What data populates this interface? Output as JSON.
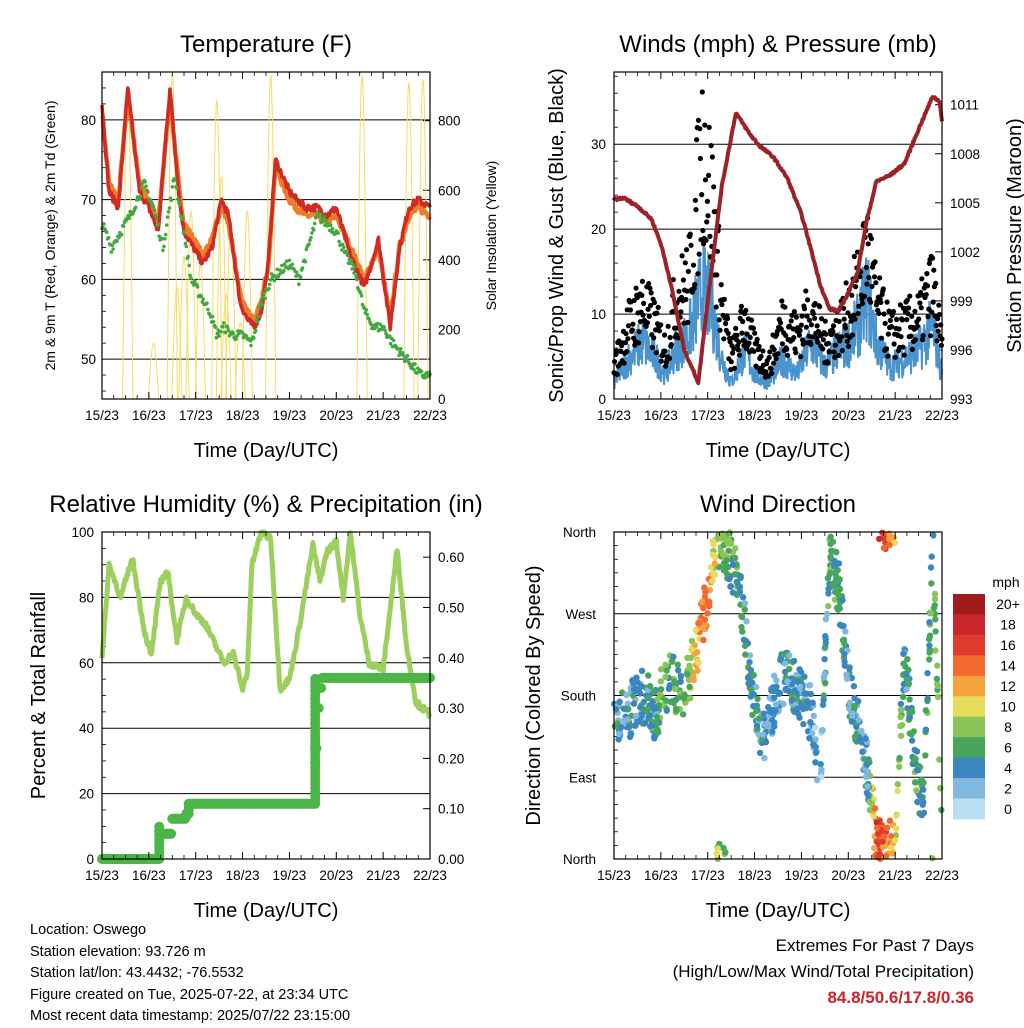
{
  "chart_data": [
    {
      "type": "line",
      "title": "Temperature (F)",
      "xlabel": "Time (Day/UTC)",
      "ylabel": "2m & 9m T (Red, Orange) & 2m Td (Green)",
      "ylabel_right": "Solar Insolation (Yellow)",
      "x_ticks": [
        "15/23",
        "16/23",
        "17/23",
        "18/23",
        "19/23",
        "20/23",
        "21/23",
        "22/23"
      ],
      "xlim": [
        0,
        7
      ],
      "y_ticks": [
        50,
        60,
        70,
        80
      ],
      "ylim": [
        45,
        86
      ],
      "y2_ticks": [
        0,
        200,
        400,
        600,
        800
      ],
      "y2lim": [
        0,
        940
      ],
      "grid": "horizontal",
      "series": [
        {
          "name": "2m T",
          "color": "#d02a25",
          "x": [
            0,
            0.15,
            0.35,
            0.55,
            0.8,
            1.0,
            1.2,
            1.45,
            1.65,
            1.75,
            1.95,
            2.15,
            2.35,
            2.55,
            2.7,
            2.95,
            3.1,
            3.25,
            3.4,
            3.55,
            3.7,
            3.85,
            4.0,
            4.15,
            4.35,
            4.6,
            4.8,
            5.0,
            5.3,
            5.6,
            5.9,
            6.15,
            6.35,
            6.55,
            6.75,
            7.0
          ],
          "values": [
            82,
            71,
            69,
            84,
            71,
            69,
            66,
            84,
            70,
            66,
            64,
            62,
            64,
            70,
            68,
            57,
            55,
            54,
            56,
            62,
            75,
            73,
            71,
            70,
            69,
            69,
            68,
            69,
            63,
            59,
            65,
            54,
            64,
            69,
            70,
            69
          ]
        },
        {
          "name": "9m T",
          "color": "#ef7d27",
          "x": [
            0,
            0.15,
            0.35,
            0.55,
            0.8,
            1.0,
            1.2,
            1.45,
            1.65,
            1.75,
            1.95,
            2.15,
            2.35,
            2.55,
            2.7,
            2.95,
            3.1,
            3.25,
            3.4,
            3.55,
            3.7,
            3.85,
            4.0,
            4.15,
            4.35,
            4.6,
            4.8,
            5.0,
            5.3,
            5.6,
            5.9,
            6.15,
            6.35,
            6.55,
            6.75,
            7.0
          ],
          "values": [
            81,
            72,
            70,
            83,
            72,
            70,
            67,
            83,
            71,
            67,
            65,
            63,
            65,
            69,
            67,
            58,
            56,
            55,
            57,
            62,
            74,
            72,
            70,
            69,
            68,
            68,
            67,
            68,
            64,
            60,
            64,
            55,
            64,
            68,
            69,
            68
          ]
        },
        {
          "name": "2m Td",
          "color": "#43a83f",
          "x": [
            0,
            0.2,
            0.4,
            0.6,
            0.9,
            1.1,
            1.3,
            1.55,
            1.75,
            1.9,
            2.1,
            2.3,
            2.45,
            2.6,
            2.8,
            3.0,
            3.2,
            3.4,
            3.6,
            3.8,
            4.0,
            4.2,
            4.4,
            4.6,
            4.8,
            5.0,
            5.2,
            5.4,
            5.6,
            5.8,
            6.0,
            6.2,
            6.5,
            6.8,
            7.0
          ],
          "values": [
            67,
            64,
            66,
            68,
            72,
            69,
            64,
            73,
            66,
            60,
            58,
            56,
            53,
            54,
            53,
            53,
            52,
            57,
            60,
            61,
            62,
            60,
            64,
            68,
            67,
            66,
            63,
            61,
            56,
            54,
            54,
            52,
            50,
            48,
            48
          ]
        },
        {
          "name": "Solar Insolation",
          "color": "#f5dc64",
          "axis": "right",
          "peaks_x": [
            0.55,
            1.1,
            1.5,
            1.6,
            1.75,
            1.9,
            2.1,
            2.45,
            2.55,
            2.65,
            2.75,
            2.95,
            3.1,
            3.6,
            5.55,
            6.55,
            6.85
          ],
          "peaks_value": [
            900,
            160,
            940,
            320,
            410,
            540,
            390,
            860,
            640,
            300,
            500,
            220,
            540,
            930,
            930,
            910,
            920
          ]
        }
      ]
    },
    {
      "type": "scatter",
      "title": "Winds (mph) & Pressure (mb)",
      "xlabel": "Time (Day/UTC)",
      "ylabel": "Sonic/Prop Wind & Gust (Blue, Black)",
      "ylabel_right": "Station Pressure (Maroon)",
      "x_ticks": [
        "15/23",
        "16/23",
        "17/23",
        "18/23",
        "19/23",
        "20/23",
        "21/23",
        "22/23"
      ],
      "xlim": [
        0,
        7
      ],
      "y_ticks": [
        0,
        10,
        20,
        30
      ],
      "ylim": [
        0,
        38.5
      ],
      "y2_ticks": [
        993,
        996,
        999,
        1002,
        1005,
        1008,
        1011
      ],
      "y2lim": [
        993,
        1013
      ],
      "grid": "horizontal",
      "series": [
        {
          "name": "Wind",
          "color": "#4a93cd",
          "x": [
            0,
            0.3,
            0.6,
            0.9,
            1.1,
            1.3,
            1.6,
            1.9,
            2.1,
            2.3,
            2.5,
            2.8,
            3.0,
            3.3,
            3.6,
            3.9,
            4.2,
            4.5,
            4.8,
            5.0,
            5.2,
            5.4,
            5.6,
            5.9,
            6.2,
            6.5,
            6.8,
            7.0
          ],
          "values": [
            2,
            5,
            7,
            5,
            3,
            6,
            8,
            14,
            11,
            5,
            2,
            6,
            3,
            2,
            5,
            3,
            7,
            4,
            6,
            7,
            9,
            13,
            7,
            4,
            5,
            6,
            9,
            3
          ]
        },
        {
          "name": "Gust",
          "color": "#000000",
          "x": [
            0,
            0.3,
            0.6,
            0.9,
            1.1,
            1.3,
            1.6,
            1.9,
            2.1,
            2.3,
            2.5,
            2.8,
            3.0,
            3.3,
            3.6,
            3.9,
            4.2,
            4.5,
            4.8,
            5.0,
            5.2,
            5.4,
            5.6,
            5.9,
            6.2,
            6.5,
            6.8,
            7.0
          ],
          "values": [
            4,
            9,
            12,
            9,
            6,
            12,
            15,
            32,
            24,
            12,
            5,
            10,
            6,
            4,
            10,
            8,
            11,
            7,
            9,
            11,
            14,
            19,
            12,
            8,
            9,
            10,
            14,
            6
          ]
        },
        {
          "name": "Station Pressure",
          "color": "#9b2226",
          "axis": "right",
          "x": [
            0,
            0.2,
            0.5,
            0.8,
            1.0,
            1.2,
            1.5,
            1.8,
            2.0,
            2.3,
            2.6,
            2.9,
            3.1,
            3.4,
            3.7,
            4.0,
            4.2,
            4.4,
            4.6,
            4.8,
            5.0,
            5.2,
            5.4,
            5.6,
            5.9,
            6.2,
            6.5,
            6.8,
            6.95,
            7.0
          ],
          "values": [
            1005.2,
            1005.3,
            1004.8,
            1004.0,
            1002.5,
            1000.2,
            996.0,
            994.0,
            999.0,
            1006.0,
            1010.5,
            1009.2,
            1008.5,
            1007.8,
            1006.5,
            1004.3,
            1002.2,
            1000.0,
            998.5,
            998.4,
            999.5,
            1000.8,
            1004.0,
            1006.3,
            1006.7,
            1007.4,
            1009.5,
            1011.5,
            1011.2,
            1010.0
          ]
        }
      ]
    },
    {
      "type": "line",
      "title": "Relative Humidity (%) & Precipitation (in)",
      "xlabel": "Time (Day/UTC)",
      "ylabel": "Percent & Total Rainfall",
      "x_ticks": [
        "15/23",
        "16/23",
        "17/23",
        "18/23",
        "19/23",
        "20/23",
        "21/23",
        "22/23"
      ],
      "xlim": [
        0,
        7
      ],
      "y_ticks": [
        0,
        20,
        40,
        60,
        80,
        100
      ],
      "ylim": [
        0,
        100
      ],
      "y2_ticks": [
        "0.00",
        "0.10",
        "0.20",
        "0.30",
        "0.40",
        "0.50",
        "0.60"
      ],
      "y2lim": [
        0,
        0.65
      ],
      "grid": "horizontal",
      "series": [
        {
          "name": "Relative Humidity",
          "color": "#9dcf5e",
          "x": [
            0,
            0.15,
            0.4,
            0.65,
            0.9,
            1.05,
            1.25,
            1.4,
            1.6,
            1.8,
            2.0,
            2.2,
            2.4,
            2.6,
            2.8,
            3.0,
            3.1,
            3.2,
            3.4,
            3.6,
            3.8,
            4.0,
            4.2,
            4.5,
            4.65,
            4.8,
            5.0,
            5.15,
            5.3,
            5.5,
            5.7,
            6.0,
            6.3,
            6.5,
            6.7,
            7.0
          ],
          "values": [
            61,
            90,
            80,
            92,
            70,
            62,
            85,
            88,
            67,
            80,
            75,
            72,
            66,
            60,
            63,
            52,
            57,
            90,
            100,
            98,
            52,
            55,
            70,
            96,
            85,
            94,
            97,
            80,
            100,
            75,
            60,
            58,
            95,
            65,
            48,
            44
          ]
        },
        {
          "name": "Total Rainfall",
          "color": "#4cb548",
          "axis": "right",
          "x": [
            0,
            1.2,
            1.22,
            1.5,
            1.8,
            1.85,
            2.5,
            3.5,
            4.5,
            4.55,
            4.6,
            4.65,
            4.7,
            5.0,
            6.0,
            7.0
          ],
          "values": [
            0,
            0,
            0.05,
            0.08,
            0.09,
            0.11,
            0.11,
            0.11,
            0.11,
            0.22,
            0.3,
            0.34,
            0.36,
            0.36,
            0.36,
            0.36
          ]
        }
      ]
    },
    {
      "type": "scatter",
      "title": "Wind Direction",
      "xlabel": "Time (Day/UTC)",
      "ylabel": "Direction (Colored By Speed)",
      "x_ticks": [
        "15/23",
        "16/23",
        "17/23",
        "18/23",
        "19/23",
        "20/23",
        "21/23",
        "22/23"
      ],
      "xlim": [
        0,
        7
      ],
      "y_ticks": [
        "North",
        "East",
        "South",
        "West",
        "North"
      ],
      "ylim": [
        0,
        360
      ],
      "grid": "horizontal",
      "colorbar_title": "mph",
      "colorbar_labels": [
        "20+",
        "18",
        "16",
        "14",
        "12",
        "10",
        "8",
        "6",
        "4",
        "2",
        "0"
      ],
      "colorbar_colors": [
        "#a01c1c",
        "#c8262a",
        "#e03a2f",
        "#f26a2d",
        "#f6a33e",
        "#e7dc5a",
        "#88c556",
        "#49a55b",
        "#3b86bf",
        "#7fb8e0",
        "#b9def2"
      ],
      "series": [
        {
          "name": "Wind Direction",
          "x": [
            0.1,
            0.3,
            0.5,
            0.7,
            0.9,
            1.0,
            1.2,
            1.4,
            1.6,
            1.8,
            2.0,
            2.2,
            2.4,
            2.6,
            2.8,
            3.0,
            3.2,
            3.4,
            3.6,
            3.8,
            4.0,
            4.2,
            4.4,
            4.6,
            4.8,
            5.0,
            5.2,
            5.4,
            5.6,
            5.8,
            6.0,
            6.2,
            6.4,
            6.6,
            6.8,
            7.0
          ],
          "values": [
            150,
            160,
            175,
            180,
            155,
            180,
            200,
            180,
            200,
            235,
            290,
            350,
            340,
            315,
            250,
            170,
            130,
            170,
            200,
            195,
            180,
            160,
            90,
            330,
            300,
            190,
            150,
            100,
            20,
            10,
            15,
            230,
            110,
            60,
            350,
            20
          ],
          "speed": [
            4,
            4,
            3,
            5,
            4,
            8,
            6,
            6,
            8,
            12,
            14,
            8,
            6,
            6,
            4,
            4,
            3,
            3,
            4,
            4,
            4,
            3,
            2,
            6,
            5,
            4,
            4,
            3,
            16,
            14,
            10,
            4,
            6,
            5,
            6,
            8
          ]
        }
      ]
    }
  ],
  "info": {
    "location": "Location: Oswego",
    "elevation": "Station elevation: 93.726 m",
    "latlon": "Station lat/lon: 43.4432; -76.5532",
    "created": "Figure created on Tue, 2025-07-22, at 23:34 UTC",
    "recent": "Most recent data timestamp: 2025/07/22 23:15:00"
  },
  "extremes": {
    "line1": "Extremes For Past 7 Days",
    "line2": "(High/Low/Max Wind/Total Precipitation)",
    "values": "84.8/50.6/17.8/0.36"
  }
}
